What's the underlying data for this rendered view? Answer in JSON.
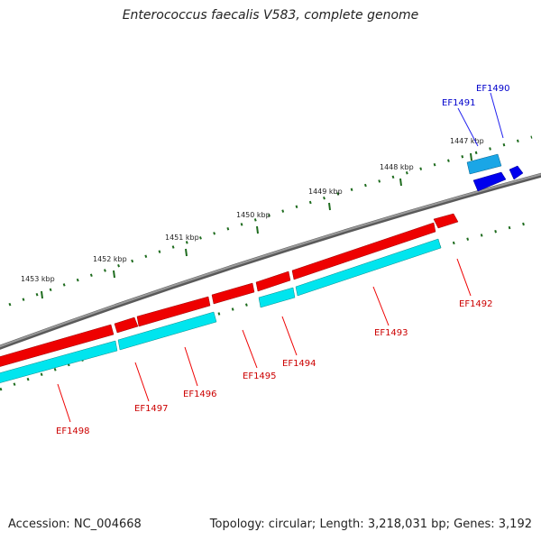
{
  "title": "Enterococcus faecalis V583, complete genome",
  "footer": {
    "accession_label": "Accession:",
    "accession": "NC_004668",
    "topology_label": "Topology:",
    "topology": "circular",
    "length_label": "Length:",
    "length": "3,218,031 bp",
    "genes_label": "Genes:",
    "genes": "3,192"
  },
  "colors": {
    "backbone": "#808080",
    "forward_gene": "#ee0000",
    "reverse_gene": "#00e5ee",
    "small_gene": "#0000ee",
    "tick": "#006400",
    "red_label": "#cc0000",
    "blue_label": "#0000cc"
  },
  "ruler": {
    "unit": "kbp",
    "ticks": [
      {
        "label": "1447 kbp"
      },
      {
        "label": "1448 kbp"
      },
      {
        "label": "1449 kbp"
      },
      {
        "label": "1450 kbp"
      },
      {
        "label": "1451 kbp"
      },
      {
        "label": "1452 kbp"
      },
      {
        "label": "1453 kbp"
      }
    ]
  },
  "genes": [
    {
      "id": "EF1490",
      "strand": "forward",
      "color_key": "blue"
    },
    {
      "id": "EF1491",
      "strand": "reverse",
      "color_key": "blue"
    },
    {
      "id": "EF1492",
      "strand": "forward",
      "color_key": "red"
    },
    {
      "id": "EF1493",
      "strand": "reverse",
      "color_key": "red"
    },
    {
      "id": "EF1494",
      "strand": "reverse",
      "color_key": "red"
    },
    {
      "id": "EF1495",
      "strand": "forward",
      "color_key": "red"
    },
    {
      "id": "EF1496",
      "strand": "reverse",
      "color_key": "red"
    },
    {
      "id": "EF1497",
      "strand": "forward",
      "color_key": "red"
    },
    {
      "id": "EF1498",
      "strand": "reverse",
      "color_key": "red"
    }
  ]
}
